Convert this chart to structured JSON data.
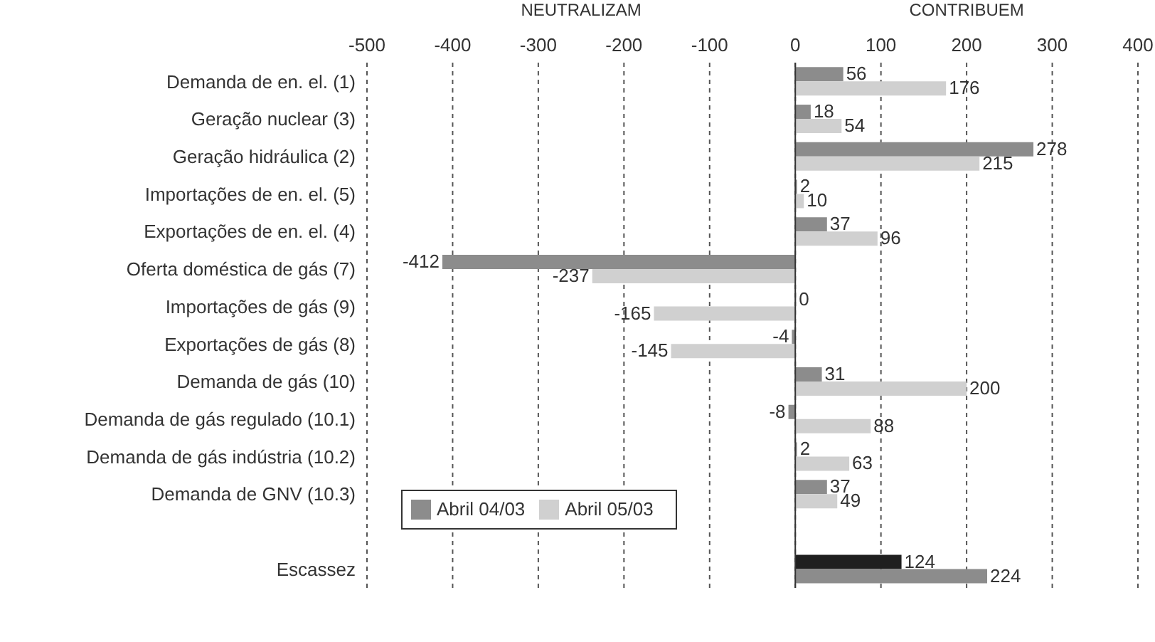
{
  "chart_data": {
    "type": "bar",
    "orientation": "horizontal",
    "categories": [
      "Demanda de en. el. (1)",
      "Geração nuclear (3)",
      "Geração hidráulica (2)",
      "Importações de en. el. (5)",
      "Exportações de en. el. (4)",
      "Oferta doméstica de gás (7)",
      "Importações de gás (9)",
      "Exportações de gás (8)",
      "Demanda de gás (10)",
      "Demanda de gás regulado (10.1)",
      "Demanda de gás indústria (10.2)",
      "Demanda de GNV (10.3)",
      null,
      "Escassez"
    ],
    "series": [
      {
        "name": "Abril 04/03",
        "color": "#8c8c8c",
        "colors": [
          "#8c8c8c",
          "#8c8c8c",
          "#8c8c8c",
          "#8c8c8c",
          "#8c8c8c",
          "#8c8c8c",
          "#8c8c8c",
          "#8c8c8c",
          "#8c8c8c",
          "#8c8c8c",
          "#8c8c8c",
          "#8c8c8c",
          "#8c8c8c",
          "#1f1f1f"
        ],
        "values": [
          56,
          18,
          278,
          2,
          37,
          -412,
          0,
          -4,
          31,
          -8,
          2,
          37,
          null,
          124
        ]
      },
      {
        "name": "Abril 05/03",
        "color": "#d0d0d0",
        "colors": [
          "#d0d0d0",
          "#d0d0d0",
          "#d0d0d0",
          "#d0d0d0",
          "#d0d0d0",
          "#d0d0d0",
          "#d0d0d0",
          "#d0d0d0",
          "#d0d0d0",
          "#d0d0d0",
          "#d0d0d0",
          "#d0d0d0",
          "#d0d0d0",
          "#8c8c8c"
        ],
        "values": [
          176,
          54,
          215,
          10,
          96,
          -237,
          -165,
          -145,
          200,
          88,
          63,
          49,
          null,
          224
        ]
      }
    ],
    "xlim": [
      -500,
      400
    ],
    "xticks": [
      -500,
      -400,
      -300,
      -200,
      -100,
      0,
      100,
      200,
      300,
      400
    ],
    "grid": "x",
    "legend": "bottom left",
    "data_labels": true,
    "annotations": [
      "NEUTRALIZAM",
      "CONTRIBUEM"
    ]
  }
}
